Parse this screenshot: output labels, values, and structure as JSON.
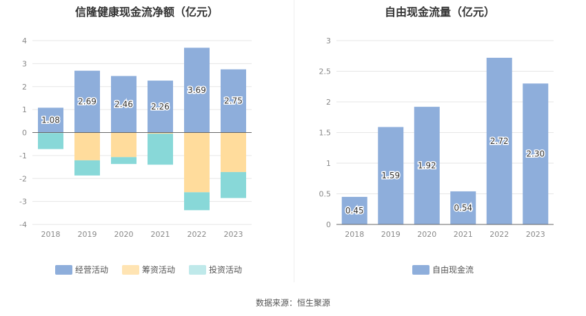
{
  "source_text": "数据来源：恒生聚源",
  "chart_data": [
    {
      "type": "bar",
      "stacked": true,
      "title": "信隆健康现金流净额（亿元）",
      "categories": [
        "2018",
        "2019",
        "2020",
        "2021",
        "2022",
        "2023"
      ],
      "ylim": [
        -4,
        4
      ],
      "yticks": [
        4,
        3,
        2,
        1,
        0,
        -1,
        -2,
        -3,
        -4
      ],
      "grid": true,
      "legend_position": "bottom",
      "series": [
        {
          "name": "经营活动",
          "color": "#8eaedb",
          "values": [
            1.08,
            2.69,
            2.46,
            2.26,
            3.69,
            2.75
          ],
          "labeled": true
        },
        {
          "name": "筹资活动",
          "color": "#ffdc9c",
          "values": [
            -0.02,
            -1.21,
            -1.07,
            -0.05,
            -2.6,
            -1.72
          ],
          "labeled": false
        },
        {
          "name": "投资活动",
          "color": "#88d8d8",
          "values": [
            -0.7,
            -0.66,
            -0.3,
            -1.35,
            -0.78,
            -1.13
          ],
          "labeled": false
        }
      ]
    },
    {
      "type": "bar",
      "title": "自由现金流量（亿元）",
      "categories": [
        "2018",
        "2019",
        "2020",
        "2021",
        "2022",
        "2023"
      ],
      "ylim": [
        0,
        3
      ],
      "yticks": [
        3,
        2.5,
        2,
        1.5,
        1,
        0.5,
        0
      ],
      "grid": true,
      "legend_position": "bottom",
      "series": [
        {
          "name": "自由现金流",
          "color": "#8eaedb",
          "values": [
            0.45,
            1.59,
            1.92,
            0.54,
            2.72,
            2.3
          ],
          "labels": [
            "0.45",
            "1.59",
            "1.92",
            "0.54",
            "2.72",
            "2.30"
          ],
          "labeled": true
        }
      ]
    }
  ]
}
